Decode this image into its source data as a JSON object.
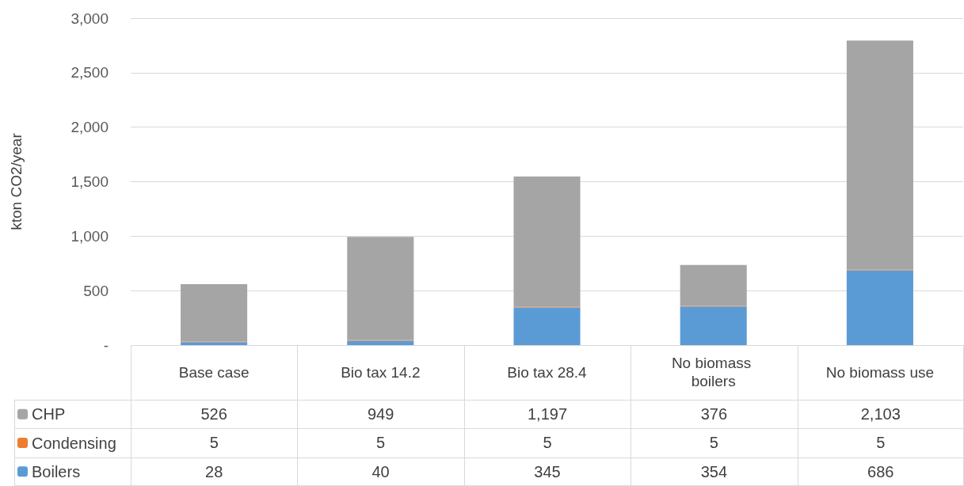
{
  "chart_data": {
    "type": "bar",
    "stacked": true,
    "ylabel": "kton CO2/year",
    "categories": [
      "Base case",
      "Bio tax 14.2",
      "Bio tax 28.4",
      "No biomass boilers",
      "No biomass use"
    ],
    "series": [
      {
        "name": "Boilers",
        "color": "#5b9bd5",
        "values": [
          28,
          40,
          345,
          354,
          686
        ],
        "value_labels": [
          "28",
          "40",
          "345",
          "354",
          "686"
        ]
      },
      {
        "name": "Condensing",
        "color": "#ed7d31",
        "values": [
          5,
          5,
          5,
          5,
          5
        ],
        "value_labels": [
          "5",
          "5",
          "5",
          "5",
          "5"
        ]
      },
      {
        "name": "CHP",
        "color": "#a5a5a5",
        "values": [
          526,
          949,
          1197,
          376,
          2103
        ],
        "value_labels": [
          "526",
          "949",
          "1,197",
          "376",
          "2,103"
        ]
      }
    ],
    "ylim": [
      0,
      3000
    ],
    "yticks": [
      {
        "value": 0,
        "label": "-"
      },
      {
        "value": 500,
        "label": "500"
      },
      {
        "value": 1000,
        "label": "1,000"
      },
      {
        "value": 1500,
        "label": "1,500"
      },
      {
        "value": 2000,
        "label": "2,000"
      },
      {
        "value": 2500,
        "label": "2,500"
      },
      {
        "value": 3000,
        "label": "3,000"
      }
    ],
    "grid": "y",
    "legend": "bottom left"
  }
}
